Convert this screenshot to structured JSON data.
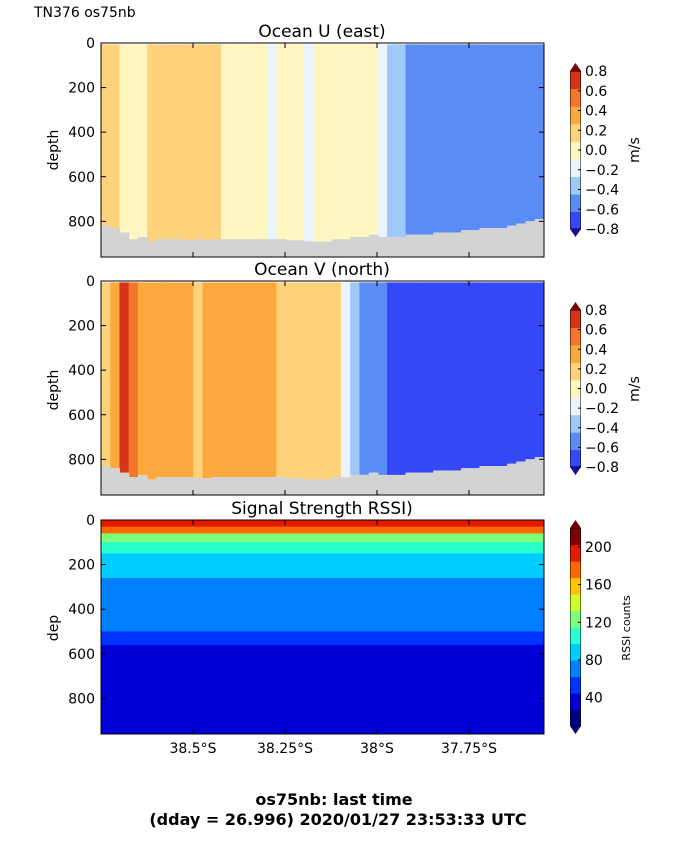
{
  "header": {
    "cruise_label": "TN376 os75nb"
  },
  "footer": {
    "line1": "os75nb: last time",
    "line2": "(dday = 26.996) 2020/01/27 23:53:33 UTC"
  },
  "x_axis": {
    "tick_labels": [
      "38.5°S",
      "38.25°S",
      "38°S",
      "37.75°S"
    ]
  },
  "chart_data": [
    {
      "type": "heatmap",
      "title": "Ocean U (east)",
      "ylabel": "depth",
      "ytick_labels": [
        "0",
        "200",
        "400",
        "600",
        "800"
      ],
      "ylim": [
        960,
        0
      ],
      "colorbar": {
        "label": "m/s",
        "tick_labels": [
          "0.8",
          "0.6",
          "0.4",
          "0.2",
          "0.0",
          "−0.2",
          "−0.4",
          "−0.6",
          "−0.8"
        ],
        "range": [
          -0.8,
          0.8
        ],
        "colors": [
          "#1e0fc8",
          "#3548f5",
          "#5b8cf5",
          "#9ec8f5",
          "#eaf4ff",
          "#fff6c2",
          "#fdd27a",
          "#faaa3c",
          "#f3762a",
          "#d8321a",
          "#a50f0f"
        ]
      },
      "columns": [
        {
          "u": 0.1
        },
        {
          "u": 0.1
        },
        {
          "u": -0.05
        },
        {
          "u": 0.05
        },
        {
          "u": 0.0
        },
        {
          "u": 0.2
        },
        {
          "u": 0.1
        },
        {
          "u": 0.2
        },
        {
          "u": 0.25
        },
        {
          "u": 0.2
        },
        {
          "u": 0.15
        },
        {
          "u": 0.1
        },
        {
          "u": 0.1
        },
        {
          "u": 0.05
        },
        {
          "u": 0.05
        },
        {
          "u": 0.05
        },
        {
          "u": 0.0
        },
        {
          "u": -0.05
        },
        {
          "u": -0.1
        },
        {
          "u": -0.05
        },
        {
          "u": -0.05
        },
        {
          "u": -0.05
        },
        {
          "u": -0.1
        },
        {
          "u": -0.05
        },
        {
          "u": 0.0
        },
        {
          "u": 0.0
        },
        {
          "u": -0.05
        },
        {
          "u": -0.05
        },
        {
          "u": -0.05
        },
        {
          "u": 0.0
        },
        {
          "u": -0.1
        },
        {
          "u": -0.3
        },
        {
          "u": -0.4
        },
        {
          "u": -0.5
        },
        {
          "u": -0.55
        },
        {
          "u": -0.55
        },
        {
          "u": -0.6
        },
        {
          "u": -0.55
        },
        {
          "u": -0.6
        },
        {
          "u": -0.55
        },
        {
          "u": -0.6
        },
        {
          "u": -0.6
        },
        {
          "u": -0.55
        },
        {
          "u": -0.6
        },
        {
          "u": -0.6
        },
        {
          "u": -0.6
        },
        {
          "u": -0.6
        },
        {
          "u": -0.6
        }
      ],
      "bottom_depth": [
        820,
        830,
        850,
        880,
        870,
        890,
        880,
        880,
        880,
        885,
        880,
        885,
        880,
        880,
        880,
        880,
        880,
        880,
        880,
        880,
        885,
        885,
        890,
        890,
        890,
        880,
        880,
        870,
        870,
        860,
        870,
        870,
        870,
        860,
        860,
        860,
        850,
        850,
        850,
        840,
        840,
        830,
        830,
        830,
        820,
        810,
        800,
        790
      ]
    },
    {
      "type": "heatmap",
      "title": "Ocean V (north)",
      "ylabel": "depth",
      "ytick_labels": [
        "0",
        "200",
        "400",
        "600",
        "800"
      ],
      "ylim": [
        960,
        0
      ],
      "colorbar": {
        "label": "m/s",
        "tick_labels": [
          "0.8",
          "0.6",
          "0.4",
          "0.2",
          "0.0",
          "−0.2",
          "−0.4",
          "−0.6",
          "−0.8"
        ],
        "range": [
          -0.8,
          0.8
        ]
      },
      "columns": [
        {
          "v": 0.25
        },
        {
          "v": 0.4
        },
        {
          "v": 0.7
        },
        {
          "v": 0.5
        },
        {
          "v": 0.35
        },
        {
          "v": 0.3
        },
        {
          "v": 0.35
        },
        {
          "v": 0.3
        },
        {
          "v": 0.3
        },
        {
          "v": 0.3
        },
        {
          "v": 0.25
        },
        {
          "v": 0.3
        },
        {
          "v": 0.3
        },
        {
          "v": 0.3
        },
        {
          "v": 0.3
        },
        {
          "v": 0.3
        },
        {
          "v": 0.3
        },
        {
          "v": 0.3
        },
        {
          "v": 0.3
        },
        {
          "v": 0.1
        },
        {
          "v": 0.1
        },
        {
          "v": 0.1
        },
        {
          "v": 0.1
        },
        {
          "v": 0.1
        },
        {
          "v": 0.1
        },
        {
          "v": 0.1
        },
        {
          "v": -0.1
        },
        {
          "v": -0.3
        },
        {
          "v": -0.5
        },
        {
          "v": -0.5
        },
        {
          "v": -0.6
        },
        {
          "v": -0.7
        },
        {
          "v": -0.7
        },
        {
          "v": -0.7
        },
        {
          "v": -0.7
        },
        {
          "v": -0.7
        },
        {
          "v": -0.7
        },
        {
          "v": -0.7
        },
        {
          "v": -0.7
        },
        {
          "v": -0.7
        },
        {
          "v": -0.7
        },
        {
          "v": -0.7
        },
        {
          "v": -0.7
        },
        {
          "v": -0.75
        },
        {
          "v": -0.75
        },
        {
          "v": -0.75
        },
        {
          "v": -0.75
        },
        {
          "v": -0.75
        }
      ],
      "bottom_depth": [
        830,
        840,
        860,
        880,
        870,
        890,
        880,
        880,
        880,
        880,
        885,
        885,
        880,
        880,
        880,
        880,
        880,
        880,
        880,
        880,
        885,
        885,
        890,
        890,
        890,
        880,
        880,
        870,
        870,
        860,
        870,
        870,
        870,
        860,
        860,
        860,
        850,
        850,
        850,
        840,
        840,
        830,
        830,
        830,
        820,
        810,
        800,
        790
      ]
    },
    {
      "type": "heatmap",
      "title": "Signal Strength RSSI)",
      "ylabel": "dep",
      "ytick_labels": [
        "0",
        "200",
        "400",
        "600",
        "800"
      ],
      "ylim": [
        960,
        0
      ],
      "colorbar": {
        "label": "RSSI counts",
        "tick_labels": [
          "200",
          "160",
          "120",
          "80",
          "40"
        ],
        "range": [
          10,
          220
        ],
        "colors": [
          "#00007f",
          "#0000d4",
          "#0033ff",
          "#0080ff",
          "#00ccff",
          "#29ffce",
          "#7dff7a",
          "#ceff29",
          "#ffc400",
          "#ff6800",
          "#e41a00",
          "#800000"
        ]
      },
      "depth_profile": [
        {
          "d": 0,
          "rssi": 200
        },
        {
          "d": 30,
          "rssi": 170
        },
        {
          "d": 60,
          "rssi": 120
        },
        {
          "d": 100,
          "rssi": 100
        },
        {
          "d": 150,
          "rssi": 95
        },
        {
          "d": 200,
          "rssi": 90
        },
        {
          "d": 260,
          "rssi": 75
        },
        {
          "d": 320,
          "rssi": 70
        },
        {
          "d": 380,
          "rssi": 78
        },
        {
          "d": 440,
          "rssi": 68
        },
        {
          "d": 500,
          "rssi": 55
        },
        {
          "d": 560,
          "rssi": 42
        },
        {
          "d": 650,
          "rssi": 36
        },
        {
          "d": 750,
          "rssi": 32
        },
        {
          "d": 850,
          "rssi": 30
        },
        {
          "d": 960,
          "rssi": 28
        }
      ]
    }
  ]
}
